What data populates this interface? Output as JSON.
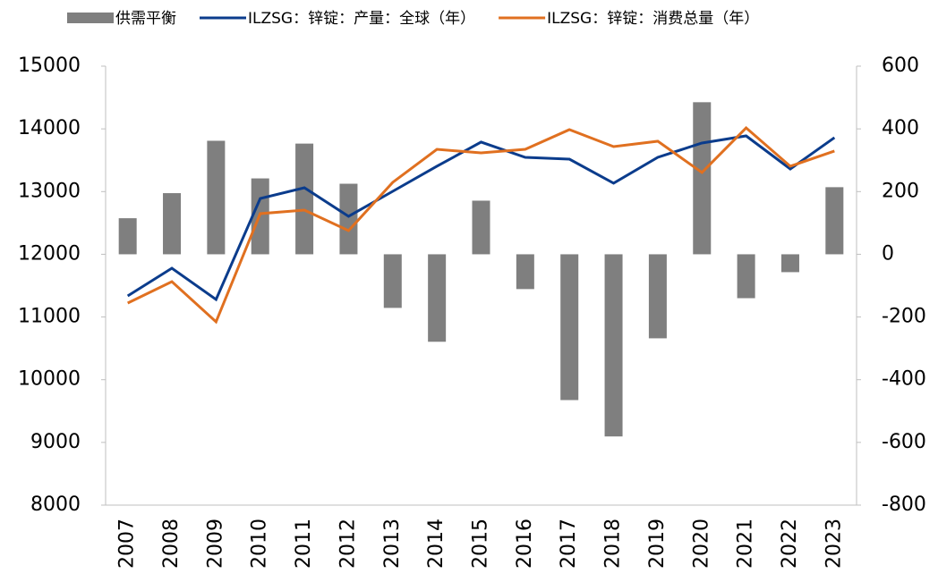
{
  "chart_data": {
    "type": "bar-line",
    "categories": [
      "2007",
      "2008",
      "2009",
      "2010",
      "2011",
      "2012",
      "2013",
      "2014",
      "2015",
      "2016",
      "2017",
      "2018",
      "2019",
      "2020",
      "2021",
      "2022",
      "2023"
    ],
    "series": [
      {
        "name": "供需平衡",
        "type": "bar",
        "axis": "y2",
        "color": "#7f7f7f",
        "values": [
          115,
          195,
          362,
          242,
          353,
          225,
          -171,
          -279,
          171,
          -111,
          -465,
          -581,
          -268,
          485,
          -140,
          -57,
          214
        ]
      },
      {
        "name": "ILZSG：锌锭：产量：全球（年）",
        "type": "line",
        "axis": "y",
        "color": "#0b3c8c",
        "values": [
          11336,
          11778,
          11279,
          12890,
          13061,
          12605,
          13004,
          13404,
          13789,
          13546,
          13517,
          13133,
          13546,
          13774,
          13888,
          13361,
          13860
        ]
      },
      {
        "name": "ILZSG：锌锭：消费总量（年）",
        "type": "line",
        "axis": "y",
        "color": "#e07020",
        "values": [
          11222,
          11564,
          10923,
          12648,
          12705,
          12377,
          13147,
          13674,
          13617,
          13674,
          13988,
          13717,
          13803,
          13304,
          14016,
          13404,
          13646
        ]
      }
    ],
    "ylim": [
      8000,
      15000
    ],
    "yticks": [
      8000,
      9000,
      10000,
      11000,
      12000,
      13000,
      14000,
      15000
    ],
    "y2lim": [
      -800,
      600
    ],
    "y2ticks": [
      -800,
      -600,
      -400,
      -200,
      0,
      200,
      400,
      600
    ],
    "legend": "top"
  }
}
